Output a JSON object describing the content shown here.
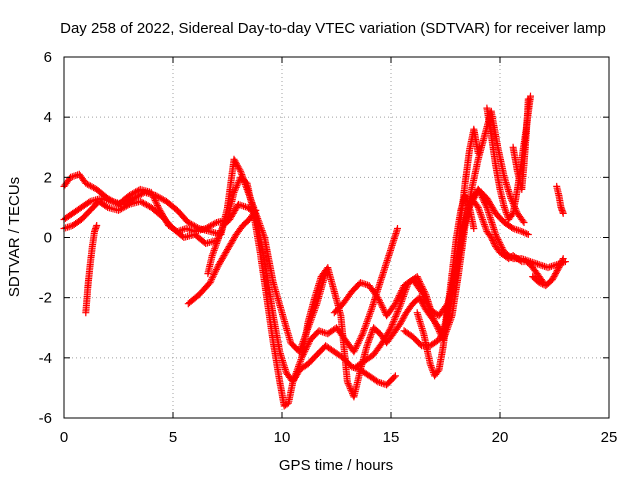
{
  "chart_data": {
    "type": "scatter",
    "title": "Day 258 of 2022, Sidereal Day-to-day VTEC variation (SDTVAR) for receiver lamp",
    "xlabel": "GPS time / hours",
    "ylabel": "SDTVAR / TECUs",
    "xlim": [
      0,
      25
    ],
    "ylim": [
      -6,
      6
    ],
    "xticks": [
      "0",
      "5",
      "10",
      "15",
      "20",
      "25"
    ],
    "yticks": [
      "-6",
      "-4",
      "-2",
      "0",
      "2",
      "4",
      "6"
    ],
    "grid": true,
    "marker": "+",
    "color": "#ff0000",
    "series": [
      {
        "x": [
          0.0,
          0.3,
          0.7,
          1.0,
          1.5,
          2.0,
          2.5,
          3.0,
          3.5,
          4.0,
          4.4,
          4.8,
          5.2,
          5.6,
          6.0,
          6.5,
          7.0,
          7.5,
          7.8,
          8.1,
          8.4,
          8.7,
          9.0,
          9.3,
          9.6,
          9.9,
          10.1,
          10.3,
          10.5,
          10.8,
          11.2,
          11.6,
          12.0,
          12.4,
          12.8,
          13.2,
          13.6,
          14.0,
          14.4,
          14.8,
          15.2
        ],
        "y": [
          1.7,
          2.0,
          2.1,
          1.8,
          1.6,
          1.3,
          1.1,
          1.4,
          1.6,
          1.5,
          0.9,
          0.4,
          0.2,
          0.3,
          0.2,
          0.3,
          0.5,
          0.6,
          1.5,
          2.0,
          1.8,
          0.8,
          -0.5,
          -2.0,
          -3.5,
          -4.8,
          -5.6,
          -5.5,
          -4.8,
          -4.4,
          -4.2,
          -3.9,
          -3.6,
          -3.8,
          -4.0,
          -4.3,
          -4.4,
          -4.6,
          -4.8,
          -4.9,
          -4.6
        ]
      },
      {
        "x": [
          0.0,
          0.4,
          0.8,
          1.2,
          1.7,
          2.2,
          2.7,
          3.2,
          3.7,
          4.2,
          4.7,
          5.2,
          5.7,
          6.2,
          6.7,
          7.2,
          7.5,
          7.8,
          8.1,
          8.4,
          8.7,
          9.0,
          9.3,
          9.6,
          9.9,
          10.2,
          10.5,
          10.9,
          11.3,
          11.7,
          12.1,
          12.5,
          12.9,
          13.3,
          13.7,
          14.1,
          14.5,
          14.9,
          15.3
        ],
        "y": [
          0.6,
          0.8,
          1.0,
          1.2,
          1.3,
          1.2,
          1.1,
          1.3,
          1.5,
          1.4,
          1.2,
          0.9,
          0.5,
          0.3,
          0.2,
          0.1,
          1.0,
          2.6,
          2.2,
          1.6,
          1.0,
          0.0,
          -1.2,
          -2.6,
          -3.8,
          -4.5,
          -4.8,
          -4.0,
          -3.4,
          -3.1,
          -3.2,
          -3.0,
          -3.4,
          -3.8,
          -3.2,
          -2.4,
          -1.5,
          -0.6,
          0.3
        ]
      },
      {
        "x": [
          0.0,
          0.4,
          0.8,
          1.2,
          1.6,
          2.0,
          2.5,
          3.0,
          3.5,
          4.0,
          4.5,
          5.0,
          5.5,
          6.0,
          6.5,
          7.0
        ],
        "y": [
          0.3,
          0.4,
          0.6,
          0.9,
          1.2,
          1.0,
          0.9,
          1.1,
          1.2,
          1.0,
          0.7,
          0.3,
          0.0,
          0.1,
          -0.2,
          -0.1
        ]
      },
      {
        "x": [
          1.0,
          1.1,
          1.2,
          1.3,
          1.4,
          1.5
        ],
        "y": [
          -2.5,
          -1.6,
          -0.9,
          -0.3,
          0.2,
          0.4
        ]
      },
      {
        "x": [
          5.7,
          6.2,
          6.7,
          7.1,
          7.5,
          7.9,
          8.2,
          8.5,
          8.8
        ],
        "y": [
          -2.2,
          -1.9,
          -1.5,
          -0.9,
          -0.4,
          0.1,
          0.4,
          0.6,
          0.9
        ]
      },
      {
        "x": [
          6.6,
          6.8,
          7.0,
          7.3,
          7.6,
          8.0,
          8.4,
          8.8,
          9.2,
          9.6,
          10.0,
          10.4,
          10.8,
          11.2,
          11.6,
          12.0
        ],
        "y": [
          -1.2,
          -0.6,
          -0.2,
          0.4,
          0.6,
          1.1,
          1.0,
          0.8,
          0.0,
          -1.5,
          -2.5,
          -3.5,
          -3.8,
          -3.0,
          -2.2,
          -1.2
        ]
      },
      {
        "x": [
          10.9,
          11.2,
          11.5,
          11.8,
          12.1,
          12.4,
          12.7,
          13.0,
          13.3,
          13.6,
          13.9,
          14.2,
          14.5,
          14.8,
          15.1,
          15.4,
          15.7,
          16.0,
          16.3,
          16.6,
          17.0,
          17.4,
          17.8,
          18.2,
          18.6,
          19.0,
          19.4,
          19.8,
          20.2,
          20.6,
          21.0,
          21.3
        ],
        "y": [
          -4.0,
          -2.8,
          -2.0,
          -1.3,
          -1.0,
          -1.8,
          -2.6,
          -4.8,
          -5.3,
          -4.4,
          -3.6,
          -3.0,
          -3.2,
          -3.5,
          -3.2,
          -2.9,
          -2.5,
          -2.2,
          -2.0,
          -2.4,
          -2.8,
          -3.2,
          -1.6,
          0.0,
          1.0,
          1.6,
          1.3,
          0.8,
          0.5,
          0.3,
          0.2,
          0.1
        ]
      },
      {
        "x": [
          12.4,
          12.8,
          13.2,
          13.6,
          14.0,
          14.4,
          14.8,
          15.2,
          15.6,
          16.0,
          16.4,
          16.8,
          17.2,
          17.6,
          18.0,
          18.3,
          18.6,
          19.0,
          19.4,
          19.8,
          20.2,
          20.6,
          21.0,
          21.4,
          21.8,
          22.2,
          22.6,
          23.0
        ],
        "y": [
          -2.5,
          -2.2,
          -1.8,
          -1.5,
          -1.6,
          -2.0,
          -2.6,
          -2.2,
          -1.6,
          -1.4,
          -1.8,
          -2.4,
          -2.6,
          -2.2,
          -1.2,
          0.2,
          1.1,
          1.6,
          1.0,
          0.1,
          -0.5,
          -0.7,
          -0.7,
          -0.8,
          -0.9,
          -1.0,
          -0.9,
          -0.8
        ]
      },
      {
        "x": [
          13.4,
          13.8,
          14.2,
          14.6,
          15.0,
          15.4,
          15.8,
          16.2,
          16.6,
          17.0,
          17.4,
          17.8,
          18.1,
          18.4,
          18.7,
          19.0,
          19.3,
          19.6,
          19.9,
          20.2,
          20.5,
          20.8,
          21.1
        ],
        "y": [
          -4.3,
          -4.1,
          -3.9,
          -3.5,
          -3.0,
          -2.3,
          -1.5,
          -1.3,
          -1.9,
          -2.8,
          -3.4,
          -2.6,
          -1.2,
          0.4,
          1.6,
          2.6,
          3.4,
          4.2,
          3.0,
          2.0,
          1.3,
          0.8,
          0.5
        ]
      },
      {
        "x": [
          15.6,
          16.0,
          16.4,
          16.8,
          17.2,
          17.5,
          17.8,
          18.0,
          18.2,
          18.4,
          18.6,
          18.8,
          19.0
        ],
        "y": [
          -3.1,
          -3.3,
          -3.6,
          -3.6,
          -3.4,
          -3.0,
          -2.0,
          -1.0,
          0.6,
          1.8,
          2.9,
          3.6,
          2.8
        ]
      },
      {
        "x": [
          16.2,
          16.5,
          16.8,
          17.0,
          17.2,
          17.4,
          17.6,
          17.8,
          18.0,
          18.2,
          18.4,
          18.6,
          18.8
        ],
        "y": [
          -2.5,
          -3.2,
          -4.2,
          -4.6,
          -4.4,
          -3.6,
          -2.4,
          -1.2,
          0.0,
          0.9,
          1.4,
          1.0,
          0.3
        ]
      },
      {
        "x": [
          18.8,
          19.0,
          19.2,
          19.4,
          19.6,
          19.8,
          20.0,
          20.2,
          20.4,
          20.6,
          20.8,
          21.0,
          21.2,
          21.4,
          21.6,
          21.8,
          22.0
        ],
        "y": [
          1.2,
          1.0,
          0.6,
          0.2,
          0.0,
          -0.3,
          -0.5,
          -0.6,
          -0.7,
          -0.6,
          -0.7,
          -0.8,
          -0.8,
          -0.9,
          -1.1,
          -1.3,
          -1.5
        ]
      },
      {
        "x": [
          19.4,
          19.6,
          19.8,
          20.0,
          20.2,
          20.4,
          20.6,
          20.8,
          21.0,
          21.2,
          21.4
        ],
        "y": [
          4.3,
          3.4,
          2.4,
          1.6,
          1.0,
          0.6,
          0.8,
          1.6,
          2.6,
          3.6,
          4.7
        ]
      },
      {
        "x": [
          20.6,
          20.8,
          21.0,
          21.1,
          21.2,
          21.3
        ],
        "y": [
          3.0,
          2.2,
          1.6,
          2.4,
          3.4,
          4.6
        ]
      },
      {
        "x": [
          21.5,
          21.8,
          22.1,
          22.4,
          22.7,
          22.9
        ],
        "y": [
          -1.3,
          -1.5,
          -1.6,
          -1.4,
          -1.0,
          -0.7
        ]
      },
      {
        "x": [
          22.6,
          22.7,
          22.8,
          22.9
        ],
        "y": [
          1.7,
          1.4,
          1.0,
          0.8
        ]
      }
    ]
  }
}
